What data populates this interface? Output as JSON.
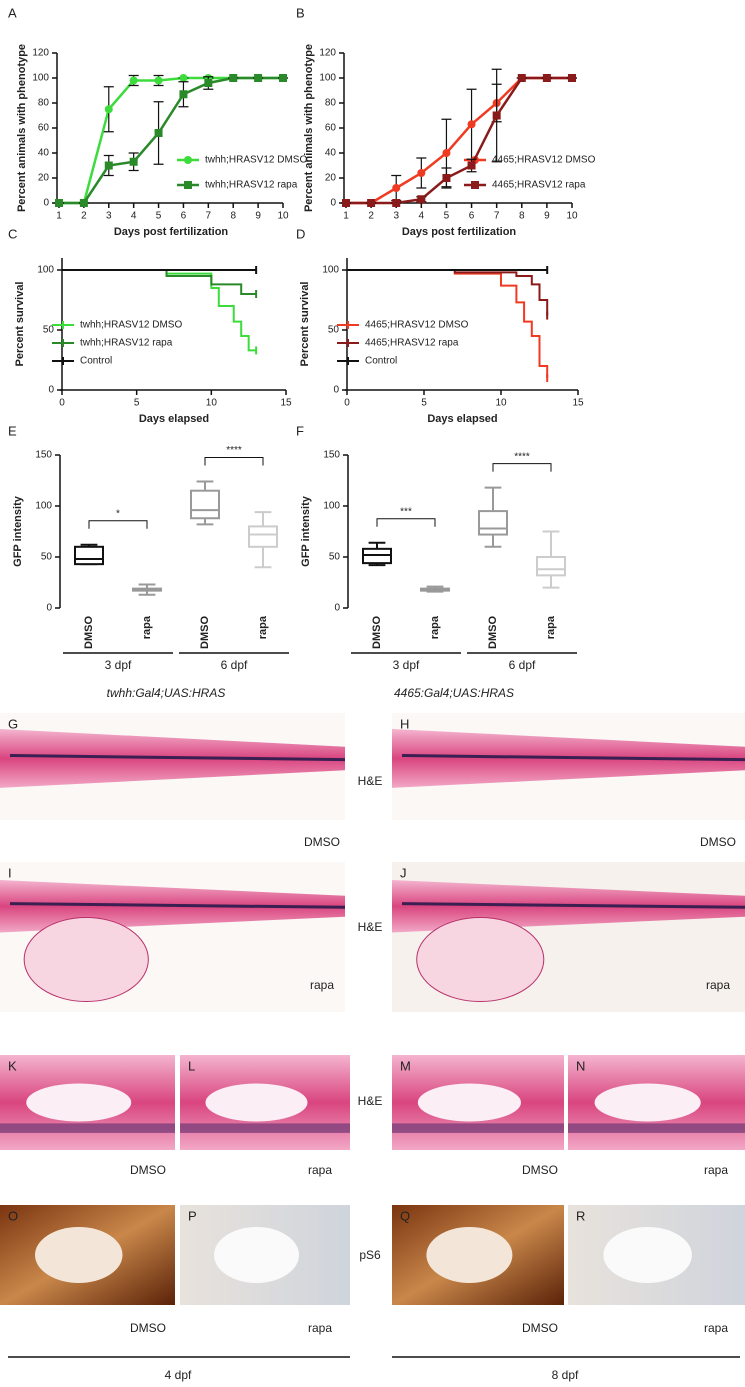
{
  "chart_data": [
    {
      "panel": "A",
      "type": "line",
      "ylabel": "Percent animals with phenotype",
      "xlabel": "Days post fertilization",
      "x": [
        1,
        2,
        3,
        4,
        5,
        6,
        7,
        8,
        9,
        10
      ],
      "xlim": [
        1,
        10
      ],
      "xticks": [
        1,
        2,
        3,
        4,
        5,
        6,
        7,
        8,
        9,
        10
      ],
      "ylim": [
        0,
        120
      ],
      "yticks": [
        0,
        20,
        40,
        60,
        80,
        100,
        120
      ],
      "legend": "lower right",
      "series": [
        {
          "name": "twhh;HRASV12 DMSO",
          "color": "#3ddc3d",
          "marker": "circle",
          "values": [
            0,
            0,
            75,
            98,
            98,
            100,
            100,
            100,
            100,
            100
          ],
          "errors": [
            0,
            0,
            18,
            4,
            4,
            0,
            0,
            0,
            0,
            0
          ]
        },
        {
          "name": "twhh;HRASV12 rapa",
          "color": "#2a8a2a",
          "marker": "square",
          "values": [
            0,
            0,
            30,
            33,
            56,
            87,
            96,
            100,
            100,
            100
          ],
          "errors": [
            0,
            0,
            8,
            7,
            25,
            10,
            5,
            0,
            0,
            0
          ]
        }
      ]
    },
    {
      "panel": "B",
      "type": "line",
      "ylabel": "Percent animals with phenotype",
      "xlabel": "Days post fertilization",
      "x": [
        1,
        2,
        3,
        4,
        5,
        6,
        7,
        8,
        9,
        10
      ],
      "xlim": [
        1,
        10
      ],
      "xticks": [
        1,
        2,
        3,
        4,
        5,
        6,
        7,
        8,
        9,
        10
      ],
      "ylim": [
        0,
        120
      ],
      "yticks": [
        0,
        20,
        40,
        60,
        80,
        100,
        120
      ],
      "legend": "lower right",
      "series": [
        {
          "name": "4465;HRASV12 DMSO",
          "color": "#f03a22",
          "marker": "circle",
          "values": [
            0,
            0,
            12,
            24,
            40,
            63,
            80,
            100,
            100,
            100
          ],
          "errors": [
            0,
            0,
            10,
            12,
            27,
            28,
            15,
            0,
            0,
            0
          ]
        },
        {
          "name": "4465;HRASV12 rapa",
          "color": "#8b1a1a",
          "marker": "square",
          "values": [
            0,
            0,
            0,
            3,
            20,
            30,
            70,
            100,
            100,
            100
          ],
          "errors": [
            0,
            0,
            0,
            2,
            8,
            5,
            37,
            0,
            0,
            0
          ]
        }
      ]
    },
    {
      "panel": "C",
      "type": "step",
      "ylabel": "Percent survival",
      "xlabel": "Days elapsed",
      "xlim": [
        0,
        15
      ],
      "xticks": [
        0,
        5,
        10,
        15
      ],
      "ylim": [
        0,
        110
      ],
      "yticks": [
        0,
        50,
        100
      ],
      "legend": "lower left",
      "series": [
        {
          "name": "twhh;HRASV12 DMSO",
          "color": "#3ddc3d",
          "x": [
            0,
            7,
            10,
            10.5,
            11.5,
            12,
            12.5,
            13
          ],
          "values": [
            100,
            97,
            85,
            70,
            57,
            45,
            33,
            33
          ]
        },
        {
          "name": "twhh;HRASV12 rapa",
          "color": "#2a8a2a",
          "x": [
            0,
            7,
            10,
            12,
            13
          ],
          "values": [
            100,
            95,
            88,
            80,
            80
          ]
        },
        {
          "name": "Control",
          "color": "#111111",
          "x": [
            0,
            13
          ],
          "values": [
            100,
            100
          ]
        }
      ]
    },
    {
      "panel": "D",
      "type": "step",
      "ylabel": "Percent survival",
      "xlabel": "Days elapsed",
      "xlim": [
        0,
        15
      ],
      "xticks": [
        0,
        5,
        10,
        15
      ],
      "ylim": [
        0,
        110
      ],
      "yticks": [
        0,
        50,
        100
      ],
      "legend": "lower left",
      "series": [
        {
          "name": "4465;HRASV12 DMSO",
          "color": "#f03a22",
          "x": [
            0,
            7,
            10,
            11,
            11.5,
            12,
            12.5,
            13
          ],
          "values": [
            100,
            97,
            87,
            73,
            57,
            45,
            20,
            10
          ]
        },
        {
          "name": "4465;HRASV12 rapa",
          "color": "#8b1a1a",
          "x": [
            0,
            7,
            11,
            12,
            12.5,
            13
          ],
          "values": [
            100,
            98,
            95,
            88,
            75,
            62
          ]
        },
        {
          "name": "Control",
          "color": "#111111",
          "x": [
            0,
            13
          ],
          "values": [
            100,
            100
          ]
        }
      ]
    },
    {
      "panel": "E",
      "type": "box",
      "ylabel": "GFP intensity",
      "caption": "twhh:Gal4;UAS:HRAS",
      "categories": [
        "DMSO",
        "rapa",
        "DMSO",
        "rapa"
      ],
      "ylim": [
        0,
        150
      ],
      "yticks": [
        0,
        50,
        100,
        150
      ],
      "boxes": [
        {
          "color": "#111111",
          "values": [
            43,
            43,
            48,
            60,
            62
          ]
        },
        {
          "color": "#999999",
          "values": [
            13,
            17,
            18,
            19,
            23
          ]
        },
        {
          "color": "#999999",
          "values": [
            82,
            88,
            96,
            115,
            124
          ]
        },
        {
          "color": "#cccccc",
          "values": [
            40,
            60,
            72,
            80,
            94
          ]
        }
      ],
      "brackets": [
        {
          "text": "*",
          "categories": [
            0,
            1
          ]
        },
        {
          "text": "****",
          "categories": [
            2,
            3
          ]
        }
      ],
      "groups": [
        {
          "label": "3 dpf",
          "categories": [
            0,
            1
          ]
        },
        {
          "label": "6 dpf",
          "categories": [
            2,
            3
          ]
        }
      ]
    },
    {
      "panel": "F",
      "type": "box",
      "ylabel": "GFP intensity",
      "caption": "4465:Gal4;UAS:HRAS",
      "categories": [
        "DMSO",
        "rapa",
        "DMSO",
        "rapa"
      ],
      "ylim": [
        0,
        150
      ],
      "yticks": [
        0,
        50,
        100,
        150
      ],
      "boxes": [
        {
          "color": "#111111",
          "values": [
            42,
            44,
            52,
            58,
            64
          ]
        },
        {
          "color": "#999999",
          "values": [
            16,
            17,
            18,
            19,
            21
          ]
        },
        {
          "color": "#999999",
          "values": [
            60,
            72,
            78,
            95,
            118
          ]
        },
        {
          "color": "#cccccc",
          "values": [
            20,
            32,
            38,
            50,
            75
          ]
        }
      ],
      "brackets": [
        {
          "text": "***",
          "categories": [
            0,
            1
          ]
        },
        {
          "text": "****",
          "categories": [
            2,
            3
          ]
        }
      ],
      "groups": [
        {
          "label": "3 dpf",
          "categories": [
            0,
            1
          ]
        },
        {
          "label": "6 dpf",
          "categories": [
            2,
            3
          ]
        }
      ]
    }
  ],
  "images": [
    {
      "panel": "G",
      "caption": "DMSO"
    },
    {
      "panel": "H",
      "caption": "DMSO"
    },
    {
      "panel": "I",
      "caption": "rapa"
    },
    {
      "panel": "J",
      "caption": "rapa"
    },
    {
      "panel": "K",
      "caption": "DMSO"
    },
    {
      "panel": "L",
      "caption": "rapa"
    },
    {
      "panel": "M",
      "caption": "DMSO"
    },
    {
      "panel": "N",
      "caption": "rapa"
    },
    {
      "panel": "O",
      "caption": "DMSO"
    },
    {
      "panel": "P",
      "caption": "rapa"
    },
    {
      "panel": "Q",
      "caption": "DMSO"
    },
    {
      "panel": "R",
      "caption": "rapa"
    }
  ],
  "stain_labels": [
    "H&E",
    "H&E",
    "H&E",
    "pS6"
  ],
  "stage_labels": [
    "4 dpf",
    "8 dpf"
  ]
}
